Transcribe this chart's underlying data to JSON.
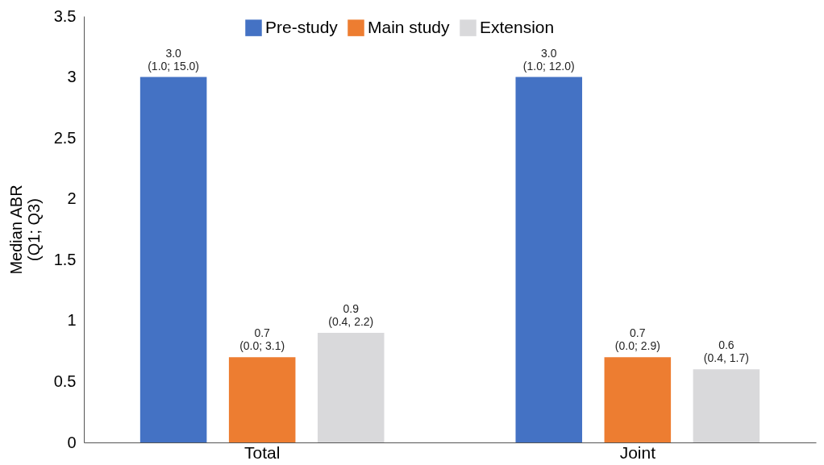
{
  "chart_data": {
    "type": "bar",
    "ylabel": "Median ABR\n(Q1; Q3)",
    "categories": [
      "Total",
      "Joint"
    ],
    "series": [
      {
        "name": "Pre-study",
        "color": "#4472c4",
        "values": [
          3.0,
          3.0
        ],
        "value_labels": [
          "3.0\n(1.0; 15.0)",
          "3.0\n(1.0; 12.0)"
        ]
      },
      {
        "name": "Main study",
        "color": "#ed7d31",
        "values": [
          0.7,
          0.7
        ],
        "value_labels": [
          "0.7\n(0.0; 3.1)",
          "0.7\n(0.0; 2.9)"
        ]
      },
      {
        "name": "Extension",
        "color": "#d9d9db",
        "values": [
          0.9,
          0.6
        ],
        "value_labels": [
          "0.9\n(0.4, 2.2)",
          "0.6\n(0.4, 1.7)"
        ]
      }
    ],
    "ylim": [
      0,
      3.5
    ],
    "yticks": [
      0,
      0.5,
      1,
      1.5,
      2,
      2.5,
      3,
      3.5
    ],
    "grid": false,
    "legend": "top"
  }
}
